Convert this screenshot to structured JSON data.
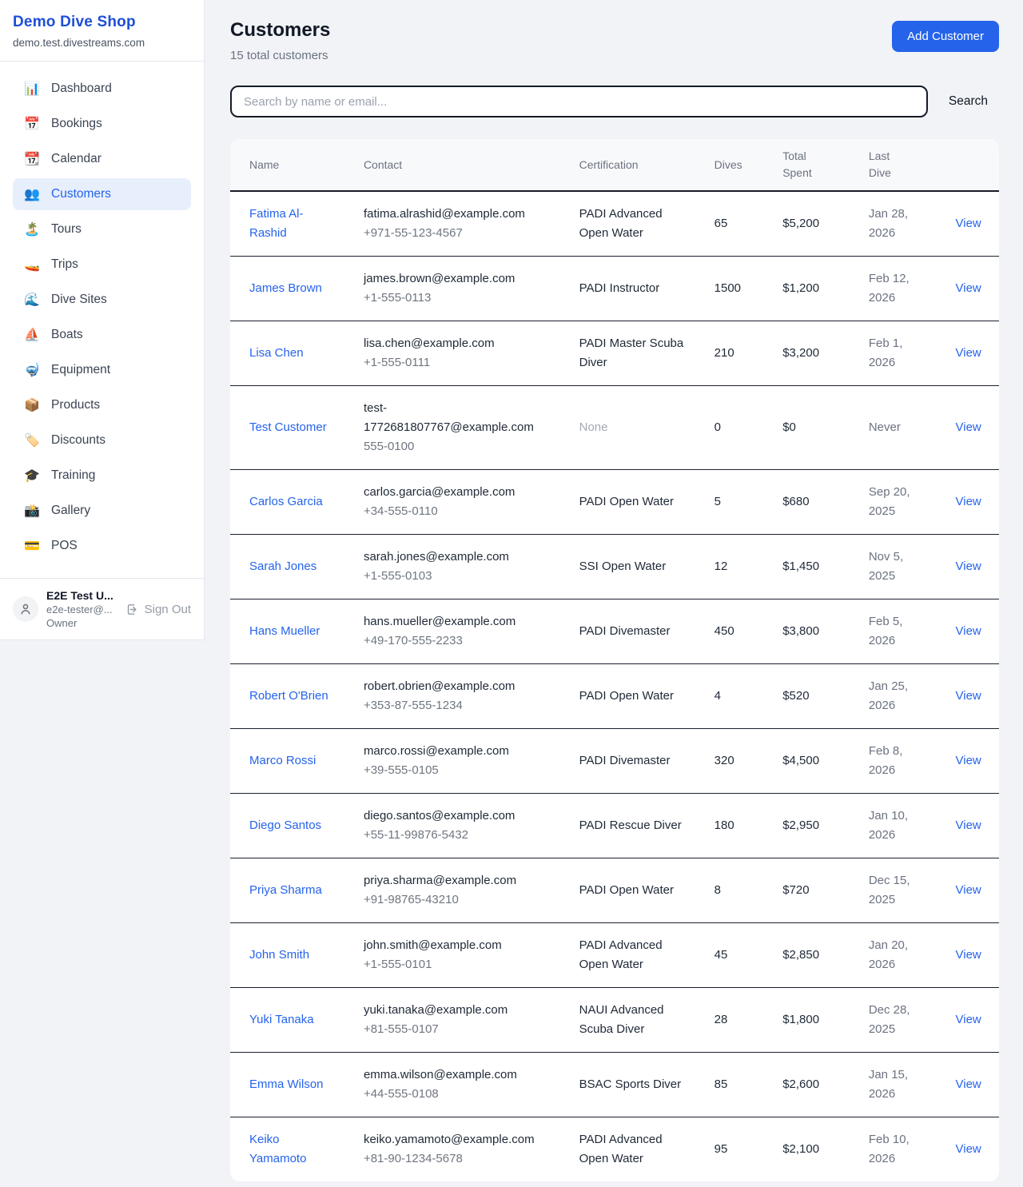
{
  "sidebar": {
    "shop_name": "Demo Dive Shop",
    "shop_domain": "demo.test.divestreams.com",
    "items": [
      {
        "id": "dashboard",
        "icon": "📊",
        "label": "Dashboard",
        "active": false
      },
      {
        "id": "bookings",
        "icon": "📅",
        "label": "Bookings",
        "active": false
      },
      {
        "id": "calendar",
        "icon": "📆",
        "label": "Calendar",
        "active": false
      },
      {
        "id": "customers",
        "icon": "👥",
        "label": "Customers",
        "active": true
      },
      {
        "id": "tours",
        "icon": "🏝️",
        "label": "Tours",
        "active": false
      },
      {
        "id": "trips",
        "icon": "🚤",
        "label": "Trips",
        "active": false
      },
      {
        "id": "dive-sites",
        "icon": "🌊",
        "label": "Dive Sites",
        "active": false
      },
      {
        "id": "boats",
        "icon": "⛵",
        "label": "Boats",
        "active": false
      },
      {
        "id": "equipment",
        "icon": "🤿",
        "label": "Equipment",
        "active": false
      },
      {
        "id": "products",
        "icon": "📦",
        "label": "Products",
        "active": false
      },
      {
        "id": "discounts",
        "icon": "🏷️",
        "label": "Discounts",
        "active": false
      },
      {
        "id": "training",
        "icon": "🎓",
        "label": "Training",
        "active": false
      },
      {
        "id": "gallery",
        "icon": "📸",
        "label": "Gallery",
        "active": false
      },
      {
        "id": "pos",
        "icon": "💳",
        "label": "POS",
        "active": false
      }
    ],
    "user": {
      "name": "E2E Test U...",
      "email": "e2e-tester@...",
      "role": "Owner",
      "sign_out_label": "Sign Out"
    }
  },
  "header": {
    "title": "Customers",
    "subtitle": "15 total customers",
    "add_button_label": "Add Customer"
  },
  "search": {
    "placeholder": "Search by name or email...",
    "button_label": "Search"
  },
  "table": {
    "columns": [
      "Name",
      "Contact",
      "Certification",
      "Dives",
      "Total Spent",
      "Last Dive",
      ""
    ],
    "view_label": "View",
    "rows": [
      {
        "name": "Fatima Al-Rashid",
        "email": "fatima.alrashid@example.com",
        "phone": "+971-55-123-4567",
        "certification": "PADI Advanced Open Water",
        "cert_muted": false,
        "dives": "65",
        "total_spent": "$5,200",
        "last_dive": "Jan 28, 2026"
      },
      {
        "name": "James Brown",
        "email": "james.brown@example.com",
        "phone": "+1-555-0113",
        "certification": "PADI Instructor",
        "cert_muted": false,
        "dives": "1500",
        "total_spent": "$1,200",
        "last_dive": "Feb 12, 2026"
      },
      {
        "name": "Lisa Chen",
        "email": "lisa.chen@example.com",
        "phone": "+1-555-0111",
        "certification": "PADI Master Scuba Diver",
        "cert_muted": false,
        "dives": "210",
        "total_spent": "$3,200",
        "last_dive": "Feb 1, 2026"
      },
      {
        "name": "Test Customer",
        "email": "test-1772681807767@example.com",
        "phone": "555-0100",
        "certification": "None",
        "cert_muted": true,
        "dives": "0",
        "total_spent": "$0",
        "last_dive": "Never"
      },
      {
        "name": "Carlos Garcia",
        "email": "carlos.garcia@example.com",
        "phone": "+34-555-0110",
        "certification": "PADI Open Water",
        "cert_muted": false,
        "dives": "5",
        "total_spent": "$680",
        "last_dive": "Sep 20, 2025"
      },
      {
        "name": "Sarah Jones",
        "email": "sarah.jones@example.com",
        "phone": "+1-555-0103",
        "certification": "SSI Open Water",
        "cert_muted": false,
        "dives": "12",
        "total_spent": "$1,450",
        "last_dive": "Nov 5, 2025"
      },
      {
        "name": "Hans Mueller",
        "email": "hans.mueller@example.com",
        "phone": "+49-170-555-2233",
        "certification": "PADI Divemaster",
        "cert_muted": false,
        "dives": "450",
        "total_spent": "$3,800",
        "last_dive": "Feb 5, 2026"
      },
      {
        "name": "Robert O'Brien",
        "email": "robert.obrien@example.com",
        "phone": "+353-87-555-1234",
        "certification": "PADI Open Water",
        "cert_muted": false,
        "dives": "4",
        "total_spent": "$520",
        "last_dive": "Jan 25, 2026"
      },
      {
        "name": "Marco Rossi",
        "email": "marco.rossi@example.com",
        "phone": "+39-555-0105",
        "certification": "PADI Divemaster",
        "cert_muted": false,
        "dives": "320",
        "total_spent": "$4,500",
        "last_dive": "Feb 8, 2026"
      },
      {
        "name": "Diego Santos",
        "email": "diego.santos@example.com",
        "phone": "+55-11-99876-5432",
        "certification": "PADI Rescue Diver",
        "cert_muted": false,
        "dives": "180",
        "total_spent": "$2,950",
        "last_dive": "Jan 10, 2026"
      },
      {
        "name": "Priya Sharma",
        "email": "priya.sharma@example.com",
        "phone": "+91-98765-43210",
        "certification": "PADI Open Water",
        "cert_muted": false,
        "dives": "8",
        "total_spent": "$720",
        "last_dive": "Dec 15, 2025"
      },
      {
        "name": "John Smith",
        "email": "john.smith@example.com",
        "phone": "+1-555-0101",
        "certification": "PADI Advanced Open Water",
        "cert_muted": false,
        "dives": "45",
        "total_spent": "$2,850",
        "last_dive": "Jan 20, 2026"
      },
      {
        "name": "Yuki Tanaka",
        "email": "yuki.tanaka@example.com",
        "phone": "+81-555-0107",
        "certification": "NAUI Advanced Scuba Diver",
        "cert_muted": false,
        "dives": "28",
        "total_spent": "$1,800",
        "last_dive": "Dec 28, 2025"
      },
      {
        "name": "Emma Wilson",
        "email": "emma.wilson@example.com",
        "phone": "+44-555-0108",
        "certification": "BSAC Sports Diver",
        "cert_muted": false,
        "dives": "85",
        "total_spent": "$2,600",
        "last_dive": "Jan 15, 2026"
      },
      {
        "name": "Keiko Yamamoto",
        "email": "keiko.yamamoto@example.com",
        "phone": "+81-90-1234-5678",
        "certification": "PADI Advanced Open Water",
        "cert_muted": false,
        "dives": "95",
        "total_spent": "$2,100",
        "last_dive": "Feb 10, 2026"
      }
    ]
  },
  "colors": {
    "accent_blue": "#2563eb",
    "brand_blue": "#1d4ed8",
    "active_item_bg": "#e7effc",
    "dark_divider": "#1a202e",
    "muted_text": "#6b7280"
  }
}
